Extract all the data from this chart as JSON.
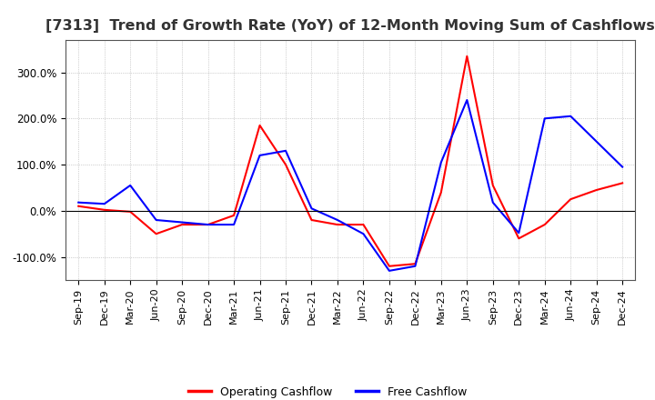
{
  "title": "[7313]  Trend of Growth Rate (YoY) of 12-Month Moving Sum of Cashflows",
  "title_fontsize": 11.5,
  "ylim": [
    -150,
    370
  ],
  "yticks": [
    -100,
    0,
    100,
    200,
    300
  ],
  "ytick_labels": [
    "-100.0%",
    "0.0%",
    "100.0%",
    "200.0%",
    "300.0%"
  ],
  "background_color": "#ffffff",
  "grid_color": "#aaaaaa",
  "operating_color": "#ff0000",
  "free_color": "#0000ff",
  "dates": [
    "Sep-19",
    "Dec-19",
    "Mar-20",
    "Jun-20",
    "Sep-20",
    "Dec-20",
    "Mar-21",
    "Jun-21",
    "Sep-21",
    "Dec-21",
    "Mar-22",
    "Jun-22",
    "Sep-22",
    "Dec-22",
    "Mar-23",
    "Jun-23",
    "Sep-23",
    "Dec-23",
    "Mar-24",
    "Jun-24",
    "Sep-24",
    "Dec-24"
  ],
  "operating_cashflow": [
    10,
    2,
    -2,
    -50,
    -30,
    -30,
    -10,
    185,
    100,
    -20,
    -30,
    -30,
    -120,
    -115,
    40,
    335,
    55,
    -60,
    -30,
    25,
    45,
    60
  ],
  "free_cashflow": [
    18,
    15,
    55,
    -20,
    -25,
    -30,
    -30,
    120,
    130,
    5,
    -20,
    -50,
    -130,
    -120,
    105,
    240,
    18,
    -48,
    200,
    205,
    150,
    95
  ],
  "legend_labels": [
    "Operating Cashflow",
    "Free Cashflow"
  ]
}
